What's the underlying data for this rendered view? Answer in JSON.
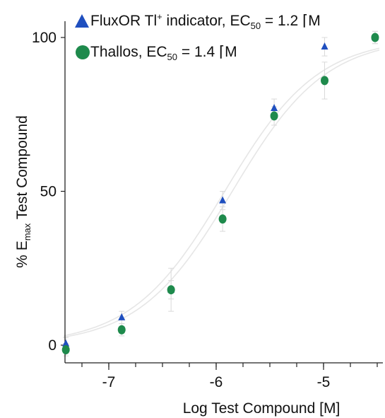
{
  "chart_data": {
    "type": "scatter",
    "xlabel": "Log Test Compound [M]",
    "ylabel": {
      "main": "% E",
      "sub": "max",
      "rest": " Test Compound"
    },
    "xlim": [
      -7.5,
      -4.5
    ],
    "ylim": [
      -6,
      104
    ],
    "xticks": [
      {
        "value": -7,
        "label": "-7"
      },
      {
        "value": -6,
        "label": "-6"
      },
      {
        "value": -5,
        "label": "-5"
      }
    ],
    "yticks": [
      {
        "value": 0,
        "label": "0"
      },
      {
        "value": 50,
        "label": "50"
      },
      {
        "value": 100,
        "label": "100"
      }
    ],
    "x_minor_step": 0.25,
    "grid": false,
    "legend_position": "top-left",
    "series": [
      {
        "legend_pre": "FluxOR Tl",
        "legend_sup": "+",
        "legend_mid": " indicator, EC",
        "legend_sub": "50",
        "legend_post": " = 1.2 ⌈M",
        "marker": "triangle",
        "color": "#1f4fbf",
        "ec50_log": -5.92,
        "x": [
          -7.4,
          -6.88,
          -6.42,
          -5.94,
          -5.46,
          -4.99,
          -4.52
        ],
        "y": [
          0.5,
          9,
          18,
          47,
          77,
          97,
          100
        ],
        "err": [
          2,
          2,
          3,
          3,
          3,
          3,
          2
        ]
      },
      {
        "legend_pre": "Thallos, EC",
        "legend_sup": "",
        "legend_mid": "",
        "legend_sub": "50",
        "legend_post": " = 1.4 ⌈M",
        "marker": "circle",
        "color": "#1e8a4c",
        "ec50_log": -5.85,
        "x": [
          -7.4,
          -6.88,
          -6.42,
          -5.94,
          -5.46,
          -4.99,
          -4.52
        ],
        "y": [
          -1.5,
          5,
          18,
          41,
          74.5,
          86,
          100
        ],
        "err": [
          2,
          2,
          7,
          4,
          3,
          6,
          2
        ]
      }
    ]
  }
}
